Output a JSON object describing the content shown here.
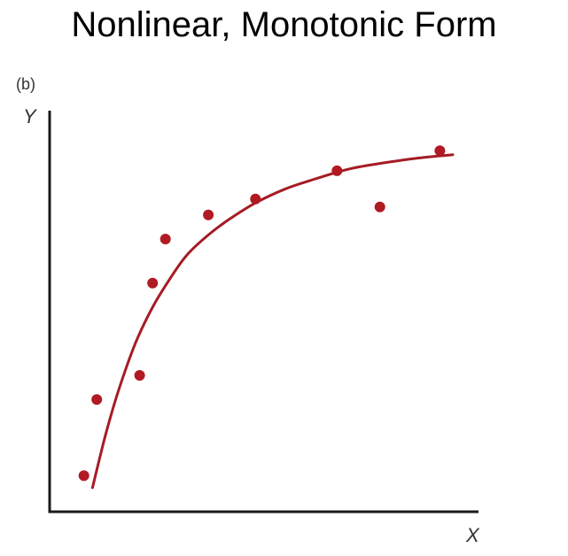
{
  "page": {
    "title": "Nonlinear, Monotonic Form"
  },
  "chart_data": {
    "type": "scatter",
    "title": "",
    "panel_label": "(b)",
    "xlabel": "X",
    "ylabel": "Y",
    "xlim": [
      0,
      10
    ],
    "ylim": [
      0,
      10
    ],
    "grid": false,
    "legend": "none",
    "tick_labels": false,
    "colors": {
      "points": "#b01a22",
      "curve": "#a51c24",
      "axes": "#1a1a1a"
    },
    "series": [
      {
        "type": "scatter",
        "x": [
          0.8,
          1.1,
          2.1,
          2.4,
          2.7,
          3.7,
          4.8,
          6.7,
          7.7,
          9.1
        ],
        "y": [
          0.9,
          2.8,
          3.4,
          5.7,
          6.8,
          7.4,
          7.8,
          8.5,
          7.6,
          9.0
        ]
      },
      {
        "type": "line",
        "x": [
          1.0,
          1.3,
          1.6,
          2.0,
          2.4,
          2.8,
          3.2,
          3.7,
          4.2,
          4.8,
          5.5,
          6.2,
          7.0,
          7.8,
          8.6,
          9.4
        ],
        "y": [
          0.6,
          1.9,
          3.0,
          4.2,
          5.1,
          5.8,
          6.4,
          6.9,
          7.3,
          7.7,
          8.05,
          8.3,
          8.55,
          8.7,
          8.82,
          8.9
        ]
      }
    ]
  }
}
